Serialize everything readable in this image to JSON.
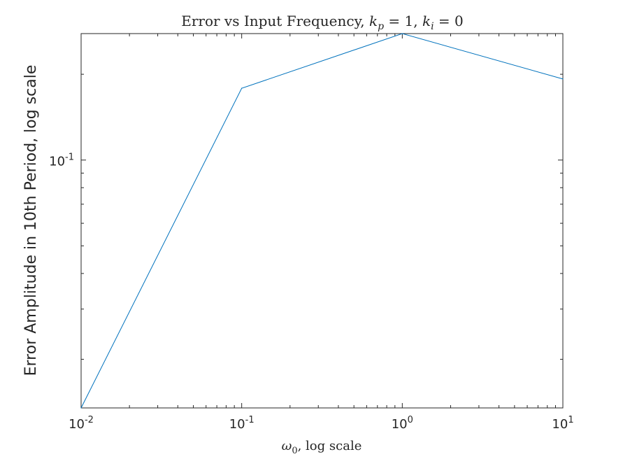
{
  "chart_data": {
    "type": "line",
    "title": {
      "prefix": "Error vs Input Frequency, ",
      "kp_symbol": "k",
      "kp_sub": "p",
      "kp_eq": " = 1, ",
      "ki_symbol": "k",
      "ki_sub": "i",
      "ki_eq": " = 0"
    },
    "xlabel": {
      "symbol": "ω",
      "sub": "0",
      "suffix": ", log scale"
    },
    "ylabel": "Error Amplitude in 10th Period, log scale",
    "xscale": "log",
    "yscale": "log",
    "xlim": [
      0.01,
      10
    ],
    "ylim": [
      0.0135,
      0.2778
    ],
    "xticks": [
      {
        "value": 0.01,
        "base": "10",
        "exp": "-2"
      },
      {
        "value": 0.1,
        "base": "10",
        "exp": "-1"
      },
      {
        "value": 1,
        "base": "10",
        "exp": "0"
      },
      {
        "value": 10,
        "base": "10",
        "exp": "1"
      }
    ],
    "yticks": [
      {
        "value": 0.1,
        "base": "10",
        "exp": "-1"
      }
    ],
    "grid": false,
    "box": true,
    "series": [
      {
        "color": "#0072bd",
        "x": [
          0.01,
          0.1,
          1,
          10
        ],
        "y": [
          0.0135,
          0.1786,
          0.2778,
          0.1925
        ]
      }
    ]
  },
  "colors": {
    "axis": "#262626",
    "line": "#0072bd"
  }
}
